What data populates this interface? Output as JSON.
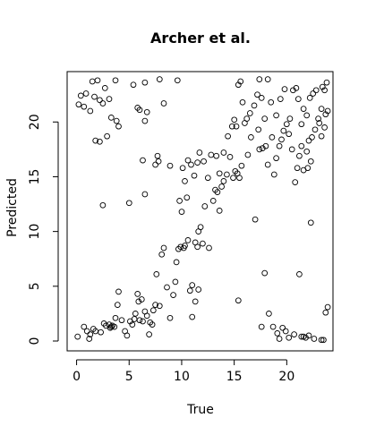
{
  "chart_data": {
    "type": "scatter",
    "title": "Archer et al.",
    "xlabel": "True",
    "ylabel": "Predicted",
    "xlim": [
      -0.9,
      24.4
    ],
    "ylim": [
      -0.9,
      24.6
    ],
    "xticks": [
      0,
      5,
      10,
      15,
      20
    ],
    "yticks": [
      0,
      5,
      10,
      15,
      20
    ],
    "grid": false,
    "marker": "open-circle",
    "colors": {
      "point": "#000000",
      "axis": "#000000",
      "background": "#ffffff"
    },
    "points": [
      [
        0.1,
        0.4
      ],
      [
        0.7,
        1.3
      ],
      [
        1.0,
        0.9
      ],
      [
        1.2,
        0.2
      ],
      [
        1.3,
        0.6
      ],
      [
        1.6,
        1.1
      ],
      [
        1.8,
        0.9
      ],
      [
        2.3,
        0.8
      ],
      [
        2.6,
        1.6
      ],
      [
        2.8,
        1.4
      ],
      [
        3.1,
        1.5
      ],
      [
        3.2,
        1.2
      ],
      [
        3.3,
        1.3
      ],
      [
        3.4,
        1.4
      ],
      [
        3.6,
        1.3
      ],
      [
        3.7,
        2.1
      ],
      [
        3.9,
        3.3
      ],
      [
        4.0,
        4.5
      ],
      [
        4.3,
        1.9
      ],
      [
        4.6,
        0.9
      ],
      [
        4.8,
        0.5
      ],
      [
        5.1,
        1.8
      ],
      [
        5.3,
        1.5
      ],
      [
        5.5,
        2.0
      ],
      [
        5.6,
        2.5
      ],
      [
        5.8,
        4.3
      ],
      [
        5.9,
        3.6
      ],
      [
        6.0,
        1.9
      ],
      [
        6.2,
        3.8
      ],
      [
        6.3,
        1.8
      ],
      [
        6.5,
        2.7
      ],
      [
        6.7,
        2.3
      ],
      [
        6.9,
        0.6
      ],
      [
        7.0,
        1.7
      ],
      [
        7.2,
        1.5
      ],
      [
        7.3,
        2.8
      ],
      [
        7.5,
        3.3
      ],
      [
        7.6,
        6.1
      ],
      [
        7.9,
        3.2
      ],
      [
        8.1,
        7.9
      ],
      [
        8.3,
        8.5
      ],
      [
        8.6,
        4.9
      ],
      [
        8.9,
        2.1
      ],
      [
        9.2,
        4.2
      ],
      [
        9.4,
        5.4
      ],
      [
        9.5,
        7.2
      ],
      [
        9.7,
        8.4
      ],
      [
        9.9,
        8.6
      ],
      [
        10.2,
        8.5
      ],
      [
        10.3,
        8.7
      ],
      [
        10.6,
        9.2
      ],
      [
        10.8,
        4.6
      ],
      [
        11.0,
        2.2
      ],
      [
        11.3,
        9.0
      ],
      [
        11.5,
        8.6
      ],
      [
        11.6,
        10.0
      ],
      [
        11.8,
        10.4
      ],
      [
        12.0,
        8.9
      ],
      [
        12.2,
        12.3
      ],
      [
        12.6,
        8.5
      ],
      [
        13.0,
        12.8
      ],
      [
        13.2,
        13.8
      ],
      [
        13.4,
        13.6
      ],
      [
        13.6,
        11.9
      ],
      [
        13.8,
        14.1
      ],
      [
        14.0,
        14.6
      ],
      [
        14.3,
        15.2
      ],
      [
        14.6,
        16.8
      ],
      [
        14.9,
        14.9
      ],
      [
        15.1,
        15.5
      ],
      [
        15.3,
        15.3
      ],
      [
        15.5,
        14.9
      ],
      [
        15.7,
        16.0
      ],
      [
        16.3,
        17.0
      ],
      [
        16.6,
        18.6
      ],
      [
        17.0,
        11.1
      ],
      [
        17.3,
        19.3
      ],
      [
        17.4,
        17.5
      ],
      [
        17.7,
        17.6
      ],
      [
        18.0,
        17.8
      ],
      [
        18.2,
        16.1
      ],
      [
        18.6,
        18.6
      ],
      [
        19.0,
        16.7
      ],
      [
        19.3,
        17.8
      ],
      [
        19.5,
        18.4
      ],
      [
        19.7,
        19.2
      ],
      [
        20.2,
        18.9
      ],
      [
        20.5,
        17.5
      ],
      [
        20.8,
        14.5
      ],
      [
        21.0,
        15.8
      ],
      [
        21.2,
        16.9
      ],
      [
        21.4,
        17.8
      ],
      [
        21.6,
        15.6
      ],
      [
        21.9,
        17.3
      ],
      [
        22.1,
        18.3
      ],
      [
        22.4,
        18.6
      ],
      [
        22.7,
        19.3
      ],
      [
        23.0,
        20.3
      ],
      [
        23.3,
        21.2
      ],
      [
        23.6,
        22.9
      ],
      [
        23.8,
        23.6
      ],
      [
        0.2,
        21.6
      ],
      [
        0.4,
        22.4
      ],
      [
        0.7,
        21.4
      ],
      [
        0.9,
        22.6
      ],
      [
        1.3,
        21.0
      ],
      [
        1.5,
        23.7
      ],
      [
        1.7,
        22.3
      ],
      [
        2.0,
        23.8
      ],
      [
        2.2,
        22.0
      ],
      [
        2.5,
        21.7
      ],
      [
        2.7,
        23.1
      ],
      [
        3.1,
        22.1
      ],
      [
        3.3,
        20.4
      ],
      [
        3.8,
        20.1
      ],
      [
        4.0,
        19.6
      ],
      [
        1.8,
        18.3
      ],
      [
        2.2,
        18.2
      ],
      [
        2.5,
        12.4
      ],
      [
        2.9,
        18.7
      ],
      [
        3.7,
        23.8
      ],
      [
        5.0,
        12.6
      ],
      [
        5.4,
        23.4
      ],
      [
        5.8,
        21.3
      ],
      [
        6.0,
        21.1
      ],
      [
        6.3,
        16.5
      ],
      [
        6.5,
        20.1
      ],
      [
        6.7,
        20.9
      ],
      [
        6.5,
        23.6
      ],
      [
        7.5,
        16.1
      ],
      [
        7.7,
        16.9
      ],
      [
        7.9,
        23.9
      ],
      [
        8.3,
        21.7
      ],
      [
        8.9,
        16.0
      ],
      [
        9.6,
        23.8
      ],
      [
        6.5,
        13.4
      ],
      [
        9.8,
        12.8
      ],
      [
        10.0,
        11.8
      ],
      [
        10.1,
        15.8
      ],
      [
        10.3,
        14.6
      ],
      [
        10.5,
        13.1
      ],
      [
        10.6,
        16.5
      ],
      [
        10.9,
        16.1
      ],
      [
        11.2,
        15.1
      ],
      [
        11.5,
        16.3
      ],
      [
        11.7,
        17.2
      ],
      [
        12.1,
        16.4
      ],
      [
        12.5,
        14.9
      ],
      [
        12.8,
        17.0
      ],
      [
        13.3,
        16.9
      ],
      [
        13.6,
        15.3
      ],
      [
        14.0,
        17.2
      ],
      [
        14.4,
        18.7
      ],
      [
        14.8,
        19.6
      ],
      [
        15.0,
        20.2
      ],
      [
        15.2,
        19.6
      ],
      [
        15.4,
        23.4
      ],
      [
        15.6,
        23.7
      ],
      [
        15.8,
        21.8
      ],
      [
        16.0,
        19.9
      ],
      [
        16.2,
        20.3
      ],
      [
        16.5,
        20.8
      ],
      [
        16.9,
        21.5
      ],
      [
        17.2,
        22.5
      ],
      [
        17.4,
        23.9
      ],
      [
        17.6,
        22.2
      ],
      [
        17.9,
        20.3
      ],
      [
        18.2,
        23.9
      ],
      [
        18.5,
        21.8
      ],
      [
        18.8,
        15.2
      ],
      [
        19.0,
        20.6
      ],
      [
        19.4,
        22.1
      ],
      [
        19.8,
        23.0
      ],
      [
        20.0,
        19.8
      ],
      [
        20.3,
        20.3
      ],
      [
        20.6,
        22.9
      ],
      [
        20.9,
        23.1
      ],
      [
        21.1,
        22.1
      ],
      [
        21.4,
        19.8
      ],
      [
        21.6,
        21.2
      ],
      [
        21.9,
        20.6
      ],
      [
        22.2,
        22.2
      ],
      [
        22.5,
        22.6
      ],
      [
        22.8,
        22.9
      ],
      [
        23.1,
        19.9
      ],
      [
        23.4,
        23.2
      ],
      [
        23.6,
        19.5
      ],
      [
        23.9,
        21.0
      ],
      [
        23.7,
        20.7
      ],
      [
        22.3,
        16.4
      ],
      [
        22.0,
        15.8
      ],
      [
        23.3,
        18.7
      ],
      [
        11.0,
        5.1
      ],
      [
        11.3,
        3.6
      ],
      [
        11.6,
        4.7
      ],
      [
        7.8,
        16.4
      ],
      [
        15.4,
        3.7
      ],
      [
        17.6,
        1.3
      ],
      [
        17.9,
        6.2
      ],
      [
        18.3,
        2.5
      ],
      [
        18.7,
        1.3
      ],
      [
        19.1,
        0.7
      ],
      [
        19.3,
        0.2
      ],
      [
        19.6,
        1.2
      ],
      [
        19.9,
        0.9
      ],
      [
        20.2,
        0.3
      ],
      [
        20.7,
        0.6
      ],
      [
        21.2,
        6.1
      ],
      [
        21.4,
        0.4
      ],
      [
        21.6,
        0.4
      ],
      [
        21.8,
        0.3
      ],
      [
        22.1,
        0.5
      ],
      [
        22.3,
        10.8
      ],
      [
        22.6,
        0.2
      ],
      [
        23.3,
        0.1
      ],
      [
        23.5,
        0.1
      ],
      [
        23.7,
        2.6
      ],
      [
        23.9,
        3.1
      ]
    ]
  }
}
